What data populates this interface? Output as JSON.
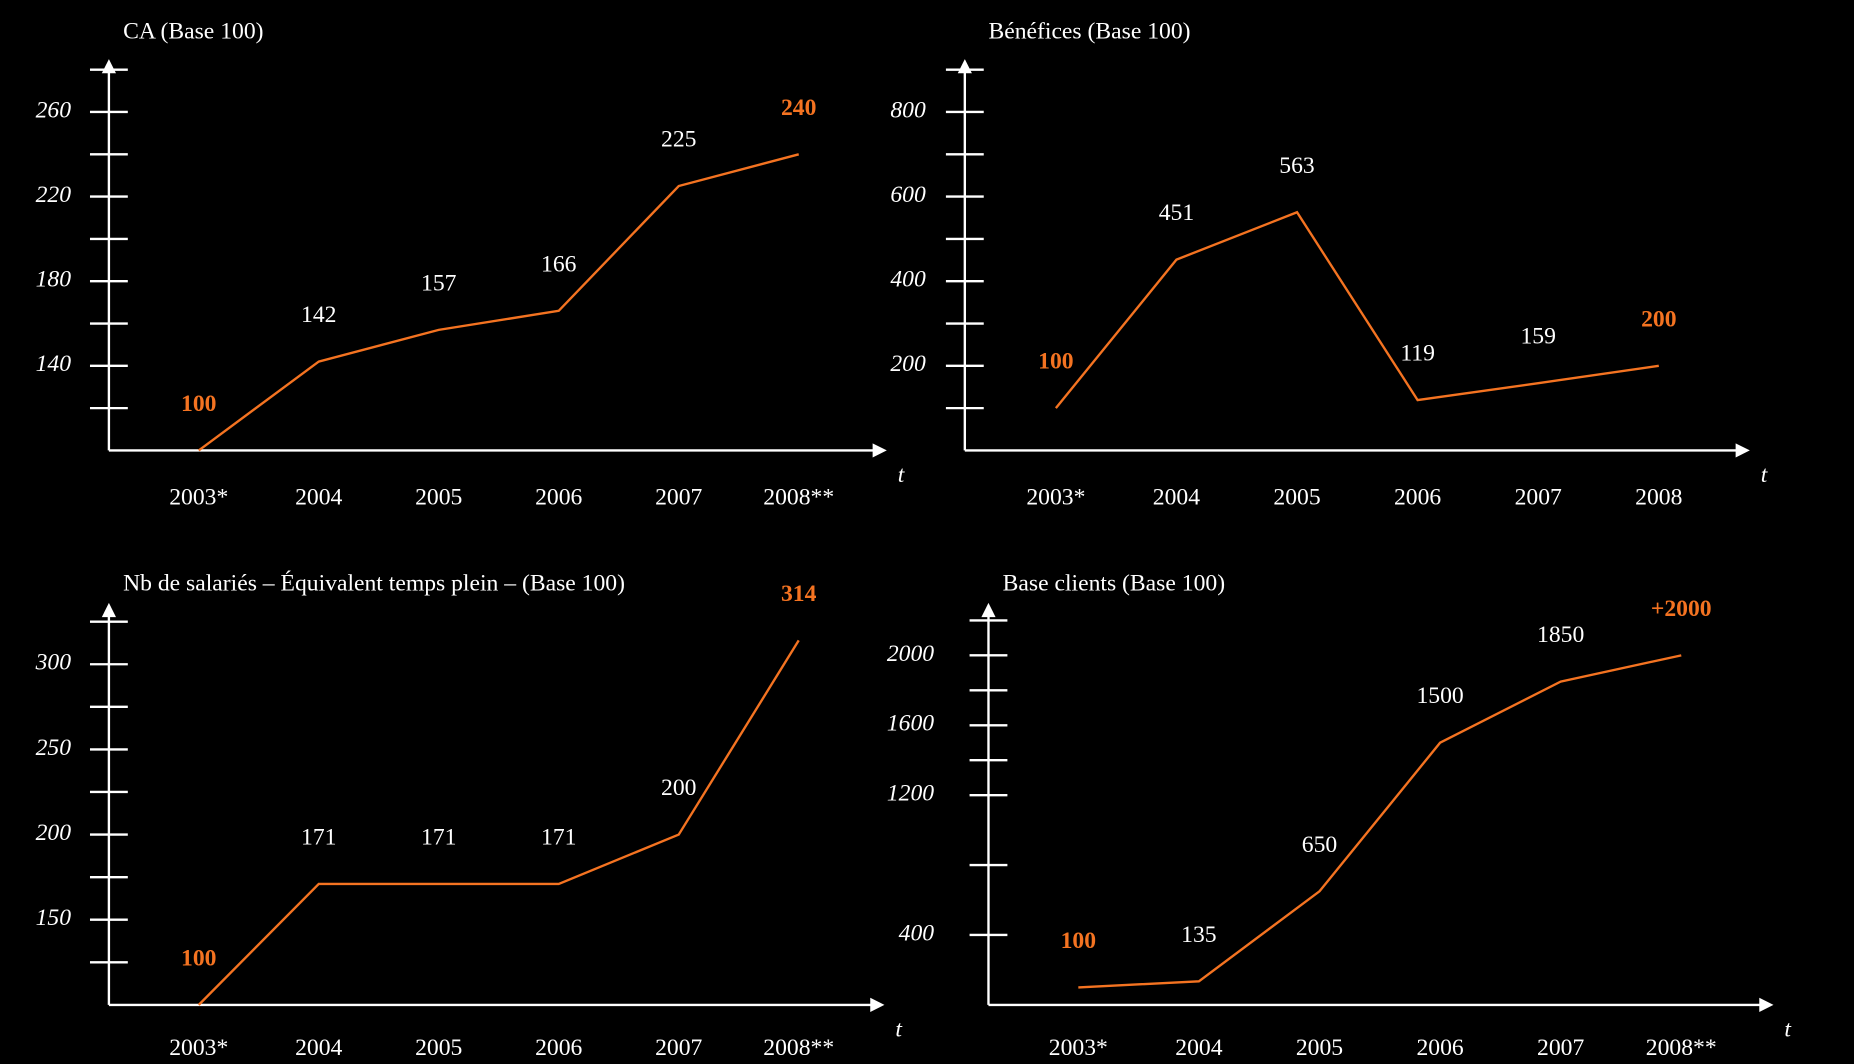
{
  "chart_data": [
    {
      "type": "line",
      "title": "CA  (Base 100)",
      "x_label": "t",
      "categories": [
        "2003*",
        "2004",
        "2005",
        "2006",
        "2007",
        "2008**"
      ],
      "series": [
        {
          "color": "#f47321",
          "values": [
            100,
            142,
            157,
            166,
            225,
            240
          ]
        }
      ],
      "ylim": [
        100,
        285
      ],
      "yticks": [
        140,
        180,
        220,
        260
      ],
      "grid": false
    },
    {
      "type": "line",
      "title": "Bénéfices (Base 100)",
      "x_label": "t",
      "categories": [
        "2003*",
        "2004",
        "2005",
        "2006",
        "2007",
        "2008"
      ],
      "series": [
        {
          "color": "#f47321",
          "values": [
            100,
            451,
            563,
            119,
            159,
            200
          ]
        }
      ],
      "ylim": [
        0,
        925
      ],
      "yticks": [
        200,
        400,
        600,
        800
      ],
      "grid": false
    },
    {
      "type": "line",
      "title": "Nb de salariés – Équivalent temps plein – (Base 100)",
      "x_label": "t",
      "categories": [
        "2003*",
        "2004",
        "2005",
        "2006",
        "2007",
        "2008**"
      ],
      "series": [
        {
          "color": "#f47321",
          "values": [
            100,
            171,
            171,
            171,
            200,
            314
          ]
        }
      ],
      "ylim": [
        100,
        336
      ],
      "yticks": [
        150,
        200,
        250,
        300
      ],
      "grid": false
    },
    {
      "type": "line",
      "title": "Base clients (Base 100)",
      "x_label": "t",
      "categories": [
        "2003*",
        "2004",
        "2005",
        "2006",
        "2007",
        "2008**"
      ],
      "series": [
        {
          "color": "#f47321",
          "values": [
            100,
            135,
            650,
            1500,
            1850,
            2000
          ],
          "value_labels": [
            "100",
            "135",
            "650",
            "1500",
            "1850",
            "+2000"
          ]
        }
      ],
      "ylim": [
        0,
        2300
      ],
      "yticks": [
        400,
        1200,
        1600,
        2000
      ],
      "grid": false
    }
  ]
}
